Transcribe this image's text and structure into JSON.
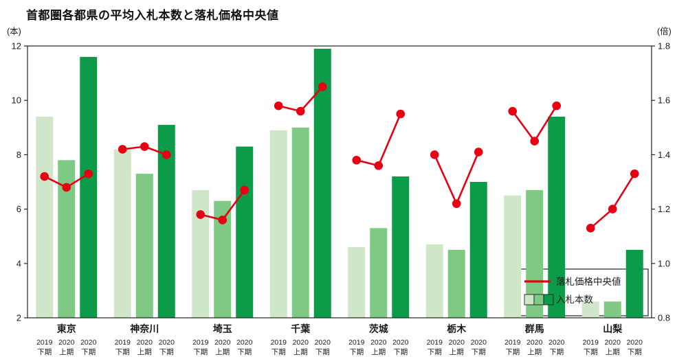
{
  "title": "首都圏各都県の平均入札本数と落札価格中央値",
  "legend": {
    "line_label": "落札価格中央値",
    "bar_label": "入札本数"
  },
  "colors": {
    "bars": [
      "#cfe6c9",
      "#7ec983",
      "#0b9b49"
    ],
    "line": "#e60012",
    "axis": "#221f1f"
  },
  "chart_data": {
    "type": "bar+line",
    "title": "首都圏各都県の平均入札本数と落札価格中央値",
    "grid": false,
    "legend_position": "bottom-right-inside",
    "categories": [
      "東京",
      "神奈川",
      "埼玉",
      "千葉",
      "茨城",
      "栃木",
      "群馬",
      "山梨"
    ],
    "period_labels": [
      {
        "year": "2019",
        "half": "下期"
      },
      {
        "year": "2020",
        "half": "上期"
      },
      {
        "year": "2020",
        "half": "下期"
      }
    ],
    "left_axis": {
      "unit": "(本)",
      "label": "入札本数",
      "min": 2,
      "max": 12,
      "ticks": [
        2,
        4,
        6,
        8,
        10,
        12
      ]
    },
    "right_axis": {
      "unit": "(倍)",
      "label": "落札価格中央値",
      "min": 0.8,
      "max": 1.8,
      "ticks": [
        0.8,
        1.0,
        1.2,
        1.4,
        1.6,
        1.8
      ]
    },
    "bar_series": [
      {
        "name": "2019下期",
        "values": [
          9.4,
          8.2,
          6.7,
          8.9,
          4.6,
          4.7,
          6.5,
          2.6
        ]
      },
      {
        "name": "2020上期",
        "values": [
          7.8,
          7.3,
          6.3,
          9.0,
          5.3,
          4.5,
          6.7,
          2.6
        ]
      },
      {
        "name": "2020下期",
        "values": [
          11.6,
          9.1,
          8.3,
          11.9,
          7.2,
          7.0,
          9.4,
          4.5
        ]
      }
    ],
    "line_series": [
      {
        "name": "2019下期",
        "values": [
          1.32,
          1.42,
          1.18,
          1.58,
          1.38,
          1.4,
          1.56,
          1.13
        ]
      },
      {
        "name": "2020上期",
        "values": [
          1.28,
          1.43,
          1.16,
          1.56,
          1.36,
          1.22,
          1.45,
          1.2
        ]
      },
      {
        "name": "2020下期",
        "values": [
          1.33,
          1.4,
          1.27,
          1.65,
          1.55,
          1.41,
          1.58,
          1.33
        ]
      }
    ]
  }
}
